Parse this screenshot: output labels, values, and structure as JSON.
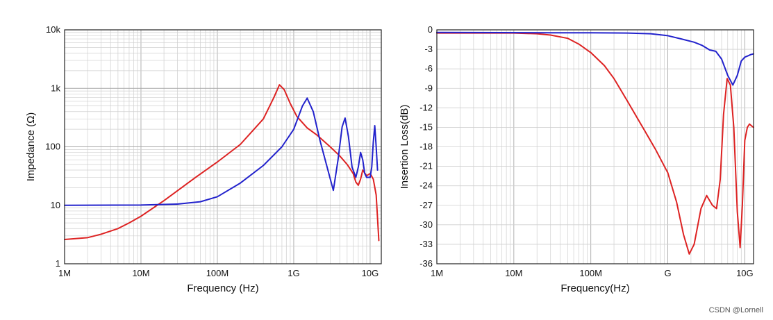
{
  "watermark": "CSDN @Lornell",
  "chart_data": [
    {
      "type": "line",
      "x_scale": "log",
      "y_scale": "log",
      "grid": true,
      "xlabel": "Frequency (Hz)",
      "ylabel": "Impedance (Ω)",
      "xlim": [
        1000000,
        14000000000
      ],
      "ylim": [
        1,
        10000
      ],
      "x_ticks": [
        {
          "value": 1000000,
          "label": "1M"
        },
        {
          "value": 10000000,
          "label": "10M"
        },
        {
          "value": 100000000,
          "label": "100M"
        },
        {
          "value": 1000000000,
          "label": "1G"
        },
        {
          "value": 10000000000,
          "label": "10G"
        }
      ],
      "y_ticks": [
        {
          "value": 1,
          "label": "1"
        },
        {
          "value": 10,
          "label": "10"
        },
        {
          "value": 100,
          "label": "100"
        },
        {
          "value": 1000,
          "label": "1k"
        },
        {
          "value": 10000,
          "label": "10k"
        }
      ],
      "series": [
        {
          "color": "#dd2222",
          "x": [
            1000000,
            2000000,
            3000000,
            5000000,
            7000000,
            10000000,
            20000000,
            50000000,
            100000000,
            200000000,
            400000000,
            550000000,
            650000000,
            750000000,
            900000000,
            1100000000,
            1500000000,
            2000000000,
            3000000000,
            4000000000,
            5000000000,
            6000000000,
            6500000000,
            7000000000,
            7500000000,
            8000000000,
            9000000000,
            10000000000,
            11000000000,
            12000000000,
            13000000000
          ],
          "y": [
            2.6,
            2.8,
            3.2,
            4.0,
            5.0,
            6.5,
            12,
            29,
            55,
            110,
            300,
            700,
            1150,
            950,
            550,
            330,
            210,
            160,
            100,
            70,
            50,
            35,
            25,
            22,
            28,
            40,
            32,
            35,
            28,
            15,
            2.5
          ]
        },
        {
          "color": "#2222cc",
          "x": [
            1000000,
            10000000,
            30000000,
            60000000,
            100000000,
            200000000,
            400000000,
            700000000,
            1000000000,
            1300000000,
            1500000000,
            1800000000,
            2200000000,
            2800000000,
            3300000000,
            3800000000,
            4300000000,
            4700000000,
            5200000000,
            5800000000,
            6500000000,
            7000000000,
            7500000000,
            8000000000,
            8500000000,
            9000000000,
            10000000000,
            10500000000,
            11000000000,
            11500000000,
            12000000000,
            12500000000
          ],
          "y": [
            10,
            10.1,
            10.5,
            11.5,
            14,
            24,
            48,
            100,
            200,
            500,
            680,
            400,
            130,
            40,
            18,
            60,
            220,
            310,
            150,
            45,
            30,
            45,
            80,
            60,
            35,
            30,
            30,
            45,
            120,
            230,
            100,
            40
          ]
        }
      ]
    },
    {
      "type": "line",
      "x_scale": "log",
      "grid": true,
      "xlabel": "Frequency(Hz)",
      "ylabel": "Insertion Loss(dB)",
      "xlim": [
        1000000,
        13000000000
      ],
      "ylim": [
        -36,
        0
      ],
      "x_ticks": [
        {
          "value": 1000000,
          "label": "1M"
        },
        {
          "value": 10000000,
          "label": "10M"
        },
        {
          "value": 100000000,
          "label": "100M"
        },
        {
          "value": 1000000000,
          "label": "G"
        },
        {
          "value": 10000000000,
          "label": "10G"
        }
      ],
      "y_ticks": [
        {
          "value": 0,
          "label": "0"
        },
        {
          "value": -3,
          "label": "-3"
        },
        {
          "value": -6,
          "label": "-6"
        },
        {
          "value": -9,
          "label": "-9"
        },
        {
          "value": -12,
          "label": "-12"
        },
        {
          "value": -15,
          "label": "-15"
        },
        {
          "value": -18,
          "label": "-18"
        },
        {
          "value": -21,
          "label": "-21"
        },
        {
          "value": -24,
          "label": "-24"
        },
        {
          "value": -27,
          "label": "-27"
        },
        {
          "value": -30,
          "label": "-30"
        },
        {
          "value": -33,
          "label": "-33"
        },
        {
          "value": -36,
          "label": "-36"
        }
      ],
      "series": [
        {
          "color": "#dd2222",
          "x": [
            1000000,
            10000000,
            20000000,
            30000000,
            50000000,
            70000000,
            100000000,
            150000000,
            200000000,
            300000000,
            500000000,
            700000000,
            1000000000,
            1300000000,
            1600000000,
            1900000000,
            2200000000,
            2700000000,
            3200000000,
            3800000000,
            4300000000,
            4800000000,
            5300000000,
            5900000000,
            6500000000,
            7200000000,
            8000000000,
            8700000000,
            9300000000,
            10000000000,
            10800000000,
            11500000000,
            12300000000,
            13000000000
          ],
          "y": [
            -0.5,
            -0.5,
            -0.6,
            -0.8,
            -1.3,
            -2.2,
            -3.5,
            -5.5,
            -7.5,
            -11,
            -15.5,
            -18.5,
            -22,
            -26.5,
            -31.5,
            -34.5,
            -33,
            -27.5,
            -25.5,
            -27,
            -27.5,
            -23,
            -13,
            -7.5,
            -8.5,
            -15,
            -28,
            -33.5,
            -27,
            -17,
            -15,
            -14.5,
            -14.8,
            -15
          ]
        },
        {
          "color": "#2222cc",
          "x": [
            1000000,
            30000000,
            100000000,
            300000000,
            600000000,
            1000000000,
            1500000000,
            2200000000,
            2800000000,
            3500000000,
            4200000000,
            5000000000,
            6000000000,
            7000000000,
            8000000000,
            9000000000,
            10000000000,
            11000000000,
            12000000000,
            13000000000
          ],
          "y": [
            -0.4,
            -0.45,
            -0.45,
            -0.5,
            -0.6,
            -0.9,
            -1.4,
            -1.9,
            -2.4,
            -3.1,
            -3.3,
            -4.5,
            -7.0,
            -8.5,
            -7.0,
            -4.8,
            -4.2,
            -4.0,
            -3.8,
            -3.7
          ]
        }
      ]
    }
  ]
}
